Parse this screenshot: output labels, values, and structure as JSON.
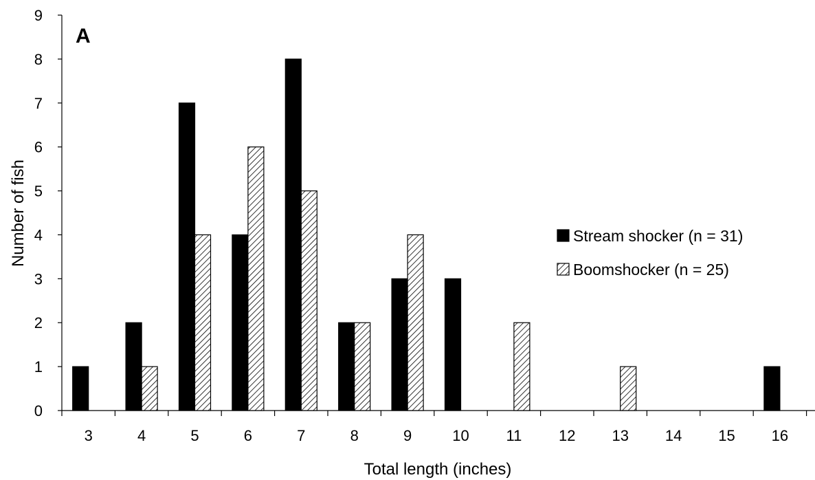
{
  "chart_data": {
    "type": "bar",
    "panel_label": "A",
    "xlabel": "Total length (inches)",
    "ylabel": "Number of fish",
    "categories": [
      "3",
      "4",
      "5",
      "6",
      "7",
      "8",
      "9",
      "10",
      "11",
      "12",
      "13",
      "14",
      "15",
      "16"
    ],
    "ylim": [
      0,
      9
    ],
    "yticks": [
      "0",
      "1",
      "2",
      "3",
      "4",
      "5",
      "6",
      "7",
      "8",
      "9"
    ],
    "grid": false,
    "legend_position": "right",
    "series": [
      {
        "name": "Stream shocker (n = 31)",
        "fill": "solid",
        "color": "#000000",
        "values": [
          1,
          2,
          7,
          4,
          8,
          2,
          3,
          3,
          0,
          0,
          0,
          0,
          0,
          1
        ]
      },
      {
        "name": "Boomshocker (n = 25)",
        "fill": "diagonal-hatch",
        "color": "#000000",
        "values": [
          0,
          1,
          4,
          6,
          5,
          2,
          4,
          0,
          2,
          0,
          1,
          0,
          0,
          0
        ]
      }
    ]
  }
}
